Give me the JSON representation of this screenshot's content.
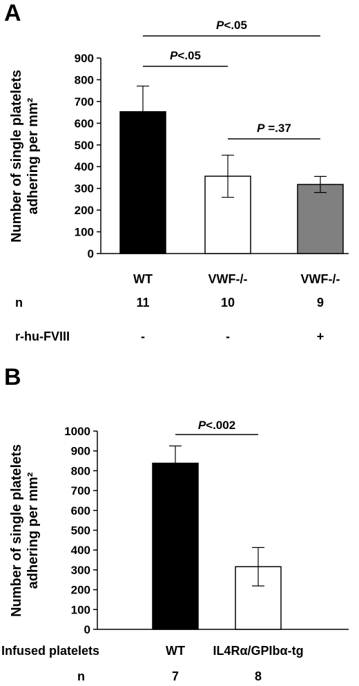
{
  "chart_data": [
    {
      "type": "bar",
      "panel_label": "A",
      "ylabel_lines": [
        "Number of  single platelets",
        "adhering per mm²"
      ],
      "ylim": [
        0,
        900
      ],
      "yticks": [
        "0",
        "100",
        "200",
        "300",
        "400",
        "500",
        "600",
        "700",
        "800",
        "900"
      ],
      "categories": [
        "WT",
        "VWF-/-",
        "VWF-/-"
      ],
      "values": [
        653,
        356,
        318
      ],
      "errors": [
        118,
        97,
        37
      ],
      "colors": [
        "#000000",
        "#ffffff",
        "#808080"
      ],
      "rows": [
        {
          "label": "n",
          "values": [
            "11",
            "10",
            "9"
          ]
        },
        {
          "label": "r-hu-FVIII",
          "values": [
            "-",
            "-",
            "+"
          ]
        }
      ],
      "significance": [
        {
          "from": 0,
          "to": 2,
          "p_italic": "P",
          "p_rest": "<.05"
        },
        {
          "from": 0,
          "to": 1,
          "p_italic": "P",
          "p_rest": "<.05"
        },
        {
          "from": 1,
          "to": 2,
          "p_italic": "P",
          "p_rest": " =.37"
        }
      ]
    },
    {
      "type": "bar",
      "panel_label": "B",
      "ylabel_lines": [
        "Number of  single platelets",
        "adhering per mm²"
      ],
      "ylim": [
        0,
        1000
      ],
      "yticks": [
        "0",
        "100",
        "200",
        "300",
        "400",
        "500",
        "600",
        "700",
        "800",
        "900",
        "1000"
      ],
      "categories": [
        "WT",
        "IL4Rα/GPIbα-tg"
      ],
      "category_row_label": "Infused platelets",
      "values": [
        838,
        316
      ],
      "errors": [
        87,
        97
      ],
      "colors": [
        "#000000",
        "#ffffff"
      ],
      "rows": [
        {
          "label": "n",
          "values": [
            "7",
            "8"
          ]
        }
      ],
      "significance": [
        {
          "from": 0,
          "to": 1,
          "p_italic": "P",
          "p_rest": "<.002"
        }
      ]
    }
  ]
}
